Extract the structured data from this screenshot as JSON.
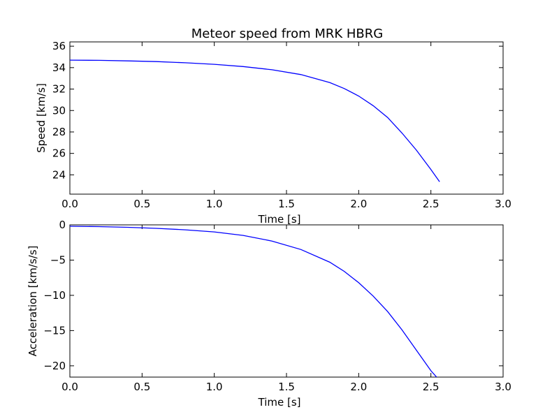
{
  "title": "Meteor speed from  MRK HBRG",
  "colors": {
    "line": "#0000ff",
    "frame": "#000000"
  },
  "chart_data": [
    {
      "type": "line",
      "title": "Meteor speed from  MRK HBRG",
      "xlabel": "Time [s]",
      "ylabel": "Speed [km/s]",
      "xlim": [
        0.0,
        3.0
      ],
      "ylim": [
        22.2,
        36.4
      ],
      "xticks": [
        "0.0",
        "0.5",
        "1.0",
        "1.5",
        "2.0",
        "2.5",
        "3.0"
      ],
      "yticks": [
        "24",
        "26",
        "28",
        "30",
        "32",
        "34",
        "36"
      ],
      "grid": false,
      "series": [
        {
          "x": [
            0.0,
            0.2,
            0.4,
            0.6,
            0.8,
            1.0,
            1.2,
            1.4,
            1.6,
            1.8,
            1.9,
            2.0,
            2.1,
            2.2,
            2.3,
            2.4,
            2.5,
            2.56
          ],
          "values": [
            34.7,
            34.68,
            34.63,
            34.56,
            34.45,
            34.31,
            34.1,
            33.8,
            33.35,
            32.6,
            32.05,
            31.35,
            30.45,
            29.35,
            27.9,
            26.3,
            24.5,
            23.35
          ]
        }
      ]
    },
    {
      "type": "line",
      "title": "",
      "xlabel": "Time [s]",
      "ylabel": "Acceleration [km/s/s]",
      "xlim": [
        0.0,
        3.0
      ],
      "ylim": [
        -21.6,
        0.0
      ],
      "xticks": [
        "0.0",
        "0.5",
        "1.0",
        "1.5",
        "2.0",
        "2.5",
        "3.0"
      ],
      "yticks": [
        "0",
        "−5",
        "−10",
        "−15",
        "−20"
      ],
      "grid": false,
      "series": [
        {
          "x": [
            0.0,
            0.2,
            0.4,
            0.6,
            0.8,
            1.0,
            1.2,
            1.4,
            1.6,
            1.8,
            1.9,
            2.0,
            2.1,
            2.2,
            2.3,
            2.4,
            2.5,
            2.54
          ],
          "values": [
            -0.2,
            -0.25,
            -0.35,
            -0.5,
            -0.7,
            -1.0,
            -1.5,
            -2.3,
            -3.5,
            -5.3,
            -6.6,
            -8.2,
            -10.1,
            -12.3,
            -14.9,
            -17.8,
            -20.7,
            -21.6
          ]
        }
      ]
    }
  ]
}
